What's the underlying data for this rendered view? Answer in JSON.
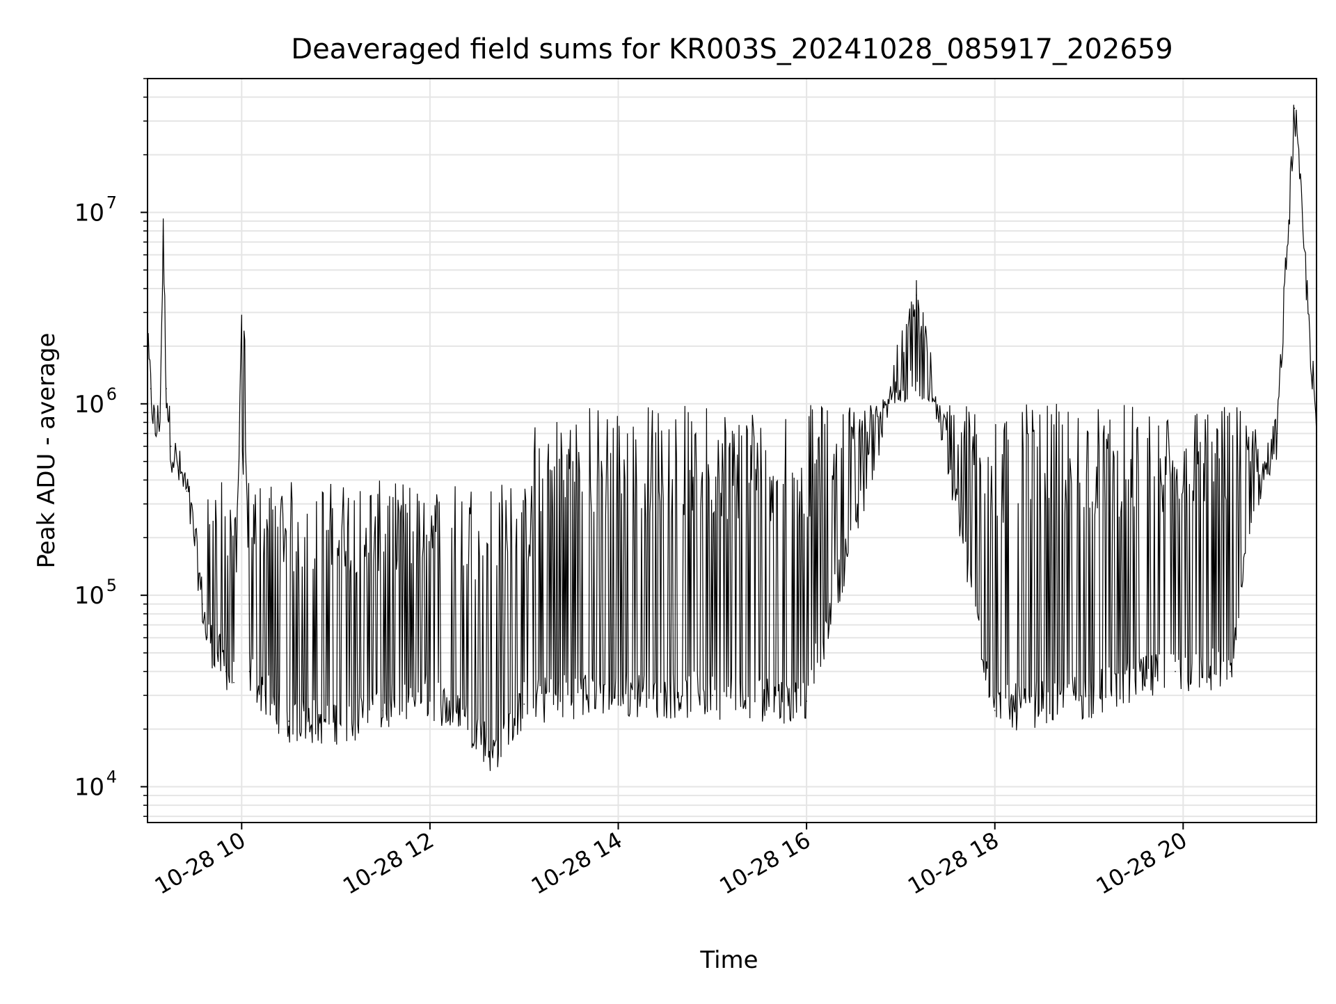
{
  "chart_data": {
    "type": "line",
    "title": "Deaveraged field sums for KR003S_20241028_085917_202659",
    "xlabel": "Time",
    "ylabel": "Peak ADU - average",
    "yscale": "log",
    "grid": true,
    "xlim": [
      "2024-10-28T09:00",
      "2024-10-28T21:25"
    ],
    "ylim": [
      6500,
      50000000
    ],
    "x_ticks": [
      {
        "value": "2024-10-28T10:00",
        "label": "10-28 10"
      },
      {
        "value": "2024-10-28T12:00",
        "label": "10-28 12"
      },
      {
        "value": "2024-10-28T14:00",
        "label": "10-28 14"
      },
      {
        "value": "2024-10-28T16:00",
        "label": "10-28 16"
      },
      {
        "value": "2024-10-28T18:00",
        "label": "10-28 18"
      },
      {
        "value": "2024-10-28T20:00",
        "label": "10-28 20"
      }
    ],
    "y_ticks": [
      {
        "value": 10000,
        "base": "10",
        "exp": "4"
      },
      {
        "value": 100000,
        "base": "10",
        "exp": "5"
      },
      {
        "value": 1000000,
        "base": "10",
        "exp": "6"
      },
      {
        "value": 10000000,
        "base": "10",
        "exp": "7"
      }
    ],
    "line_color": "#000000",
    "grid_color": "#e5e5e5",
    "series": [
      {
        "values_note_free": true,
        "points": [
          [
            "2024-10-28T09:00",
            2000000
          ],
          [
            "2024-10-28T09:02",
            1200000
          ],
          [
            "2024-10-28T09:05",
            700000
          ],
          [
            "2024-10-28T09:08",
            900000
          ],
          [
            "2024-10-28T09:10",
            7500000
          ],
          [
            "2024-10-28T09:12",
            1200000
          ],
          [
            "2024-10-28T09:15",
            600000
          ],
          [
            "2024-10-28T09:20",
            450000
          ],
          [
            "2024-10-28T09:25",
            350000
          ],
          [
            "2024-10-28T09:30",
            200000
          ],
          [
            "2024-10-28T09:35",
            90000
          ],
          [
            "2024-10-28T09:38",
            60000
          ],
          [
            "2024-10-28T09:45",
            50000
          ],
          [
            "2024-10-28T09:50",
            40000
          ],
          [
            "2024-10-28T09:55",
            35000
          ],
          [
            "2024-10-28T10:00",
            2200000
          ],
          [
            "2024-10-28T10:02",
            2000000
          ],
          [
            "2024-10-28T10:05",
            40000
          ],
          [
            "2024-10-28T10:15",
            30000
          ],
          [
            "2024-10-28T10:30",
            22000
          ],
          [
            "2024-10-28T11:00",
            22000
          ],
          [
            "2024-10-28T11:30",
            25000
          ],
          [
            "2024-10-28T12:00",
            30000
          ],
          [
            "2024-10-28T12:30",
            20000
          ],
          [
            "2024-10-28T12:40",
            15000
          ],
          [
            "2024-10-28T13:00",
            27000
          ],
          [
            "2024-10-28T13:30",
            30000
          ],
          [
            "2024-10-28T14:00",
            30000
          ],
          [
            "2024-10-28T15:00",
            30000
          ],
          [
            "2024-10-28T16:00",
            28000
          ],
          [
            "2024-10-28T17:10",
            3700000
          ],
          [
            "2024-10-28T18:00",
            25000
          ],
          [
            "2024-10-28T19:00",
            30000
          ],
          [
            "2024-10-28T19:55",
            40000
          ],
          [
            "2024-10-28T20:30",
            40000
          ],
          [
            "2024-10-28T20:45",
            300000
          ],
          [
            "2024-10-28T21:00",
            700000
          ],
          [
            "2024-10-28T21:11",
            35000000
          ],
          [
            "2024-10-28T21:25",
            700000
          ]
        ]
      }
    ]
  }
}
